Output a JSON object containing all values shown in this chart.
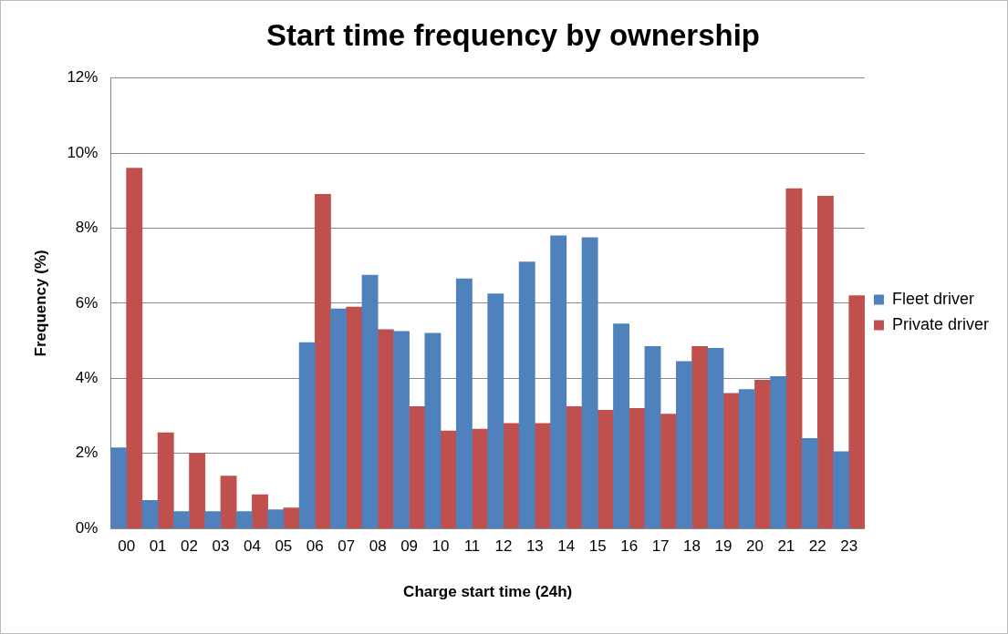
{
  "chart_data": {
    "type": "bar",
    "title": "Start time frequency by ownership",
    "xlabel": "Charge start time (24h)",
    "ylabel": "Frequency (%)",
    "categories": [
      "00",
      "01",
      "02",
      "03",
      "04",
      "05",
      "06",
      "07",
      "08",
      "09",
      "10",
      "11",
      "12",
      "13",
      "14",
      "15",
      "16",
      "17",
      "18",
      "19",
      "20",
      "21",
      "22",
      "23"
    ],
    "series": [
      {
        "name": "Fleet driver",
        "color": "#4f81bd",
        "values": [
          2.15,
          0.75,
          0.45,
          0.45,
          0.45,
          0.5,
          4.95,
          5.85,
          6.75,
          5.25,
          5.2,
          6.65,
          6.25,
          7.1,
          7.8,
          7.75,
          5.45,
          4.85,
          4.45,
          4.8,
          3.7,
          4.05,
          2.4,
          2.05
        ]
      },
      {
        "name": "Private driver",
        "color": "#c0504d",
        "values": [
          9.6,
          2.55,
          2.0,
          1.4,
          0.9,
          0.55,
          8.9,
          5.9,
          5.3,
          3.25,
          2.6,
          2.65,
          2.8,
          2.8,
          3.25,
          3.15,
          3.2,
          3.05,
          4.85,
          3.6,
          3.95,
          9.05,
          8.85,
          6.2
        ]
      }
    ],
    "ylim": [
      0,
      12
    ],
    "yticks": [
      {
        "value": 0,
        "label": "0%"
      },
      {
        "value": 2,
        "label": "2%"
      },
      {
        "value": 4,
        "label": "4%"
      },
      {
        "value": 6,
        "label": "6%"
      },
      {
        "value": 8,
        "label": "8%"
      },
      {
        "value": 10,
        "label": "10%"
      },
      {
        "value": 12,
        "label": "12%"
      }
    ],
    "grid": "y",
    "legend": "right"
  }
}
